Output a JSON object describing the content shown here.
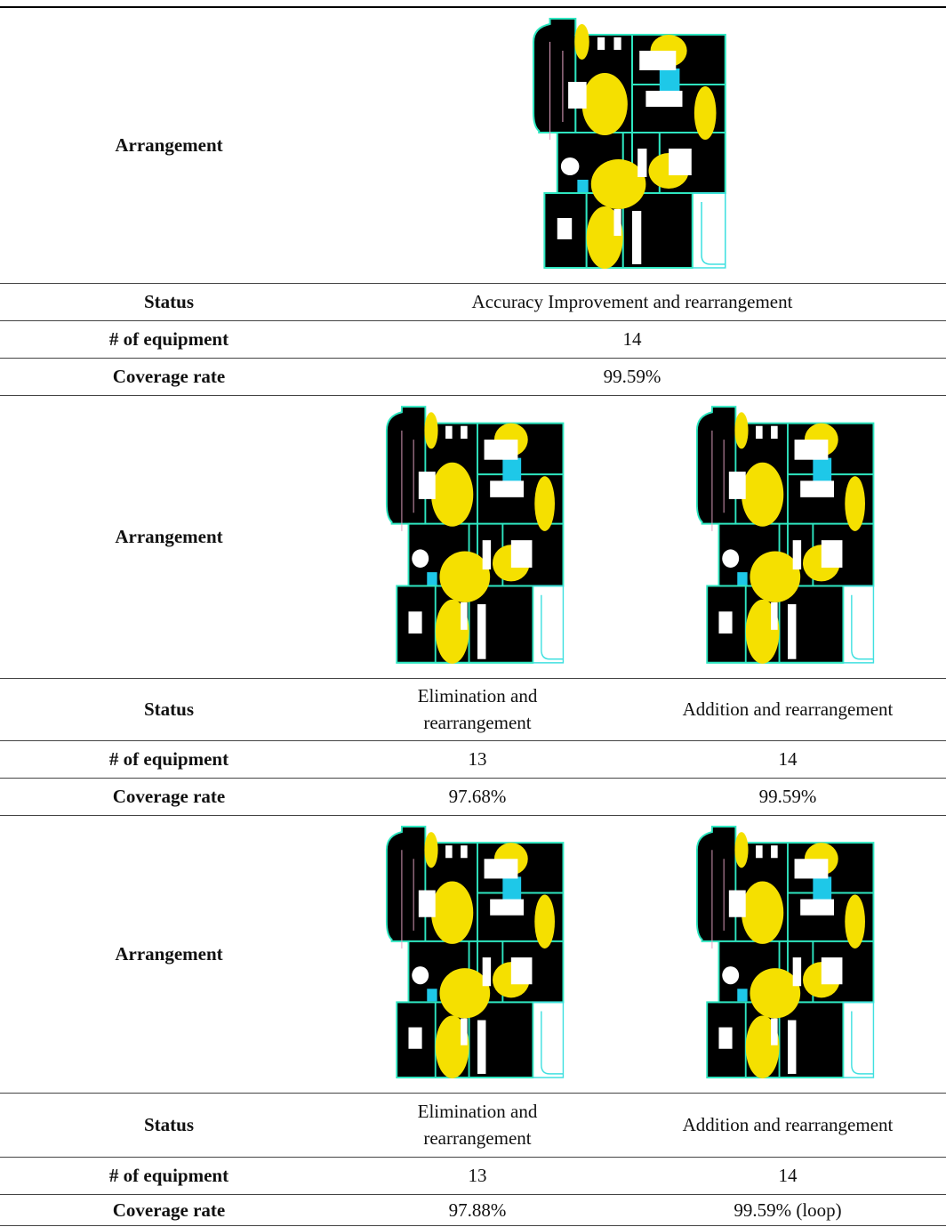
{
  "table": {
    "sections": [
      {
        "arrangement_label": "Arrangement",
        "status_label": "Status",
        "status": [
          "Accuracy Improvement and rearrangement"
        ],
        "equipment_label": "# of equipment",
        "equipment": [
          14
        ],
        "coverage_label": "Coverage rate",
        "coverage": [
          "99.59%"
        ]
      },
      {
        "arrangement_label": "Arrangement",
        "status_label": "Status",
        "status": [
          "Elimination and rearrangement",
          "Addition and rearrangement"
        ],
        "equipment_label": "# of equipment",
        "equipment": [
          13,
          14
        ],
        "coverage_label": "Coverage rate",
        "coverage": [
          "97.68%",
          "99.59%"
        ]
      },
      {
        "arrangement_label": "Arrangement",
        "status_label": "Status",
        "status": [
          "Elimination and rearrangement",
          "Addition and rearrangement"
        ],
        "equipment_label": "# of equipment",
        "equipment": [
          13,
          14
        ],
        "coverage_label": "Coverage rate",
        "coverage": [
          "97.88%",
          "99.59% (loop)"
        ]
      }
    ]
  }
}
